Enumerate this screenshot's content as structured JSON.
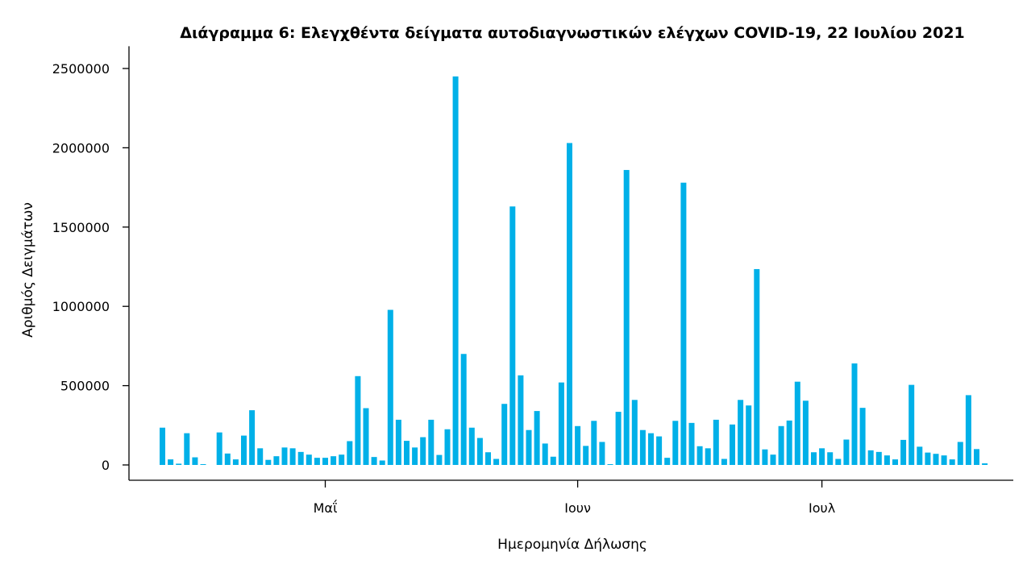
{
  "chart_data": {
    "type": "bar",
    "title": "Διάγραμμα 6: Ελεγχθέντα δείγματα αυτοδιαγνωστικών ελέγχων COVID-19, 22 Ιουλίου 2021",
    "xlabel": "Ημερομηνία Δήλωσης",
    "ylabel": "Αριθμός Δειγμάτων",
    "ylim": [
      0,
      2600000
    ],
    "yticks": [
      0,
      500000,
      1000000,
      1500000,
      2000000,
      2500000
    ],
    "ytick_labels": [
      "0",
      "500000",
      "1000000",
      "1500000",
      "2000000",
      "2500000"
    ],
    "xticks": [
      {
        "label": "Μαΐ",
        "day": 20
      },
      {
        "label": "Ιουν",
        "day": 51
      },
      {
        "label": "Ιουλ",
        "day": 81
      }
    ],
    "grid": false,
    "bar_color": "#00b0e8",
    "start_date": "2021-04-11",
    "values": [
      235000,
      35000,
      8000,
      200000,
      48000,
      5000,
      0,
      205000,
      72000,
      35000,
      185000,
      345000,
      105000,
      32000,
      55000,
      110000,
      105000,
      82000,
      65000,
      45000,
      45000,
      55000,
      65000,
      150000,
      560000,
      358000,
      50000,
      28000,
      978000,
      285000,
      152000,
      110000,
      175000,
      285000,
      63000,
      225000,
      2450000,
      700000,
      235000,
      170000,
      80000,
      38000,
      385000,
      1630000,
      565000,
      220000,
      340000,
      135000,
      52000,
      520000,
      2030000,
      245000,
      120000,
      278000,
      145000,
      5000,
      335000,
      1860000,
      410000,
      220000,
      200000,
      180000,
      45000,
      278000,
      1780000,
      265000,
      118000,
      105000,
      285000,
      38000,
      255000,
      410000,
      375000,
      1235000,
      98000,
      65000,
      245000,
      280000,
      525000,
      405000,
      80000,
      105000,
      80000,
      38000,
      160000,
      640000,
      360000,
      92000,
      82000,
      60000,
      35000,
      158000,
      505000,
      115000,
      78000,
      70000,
      60000,
      35000,
      145000,
      440000,
      100000,
      10000
    ]
  }
}
